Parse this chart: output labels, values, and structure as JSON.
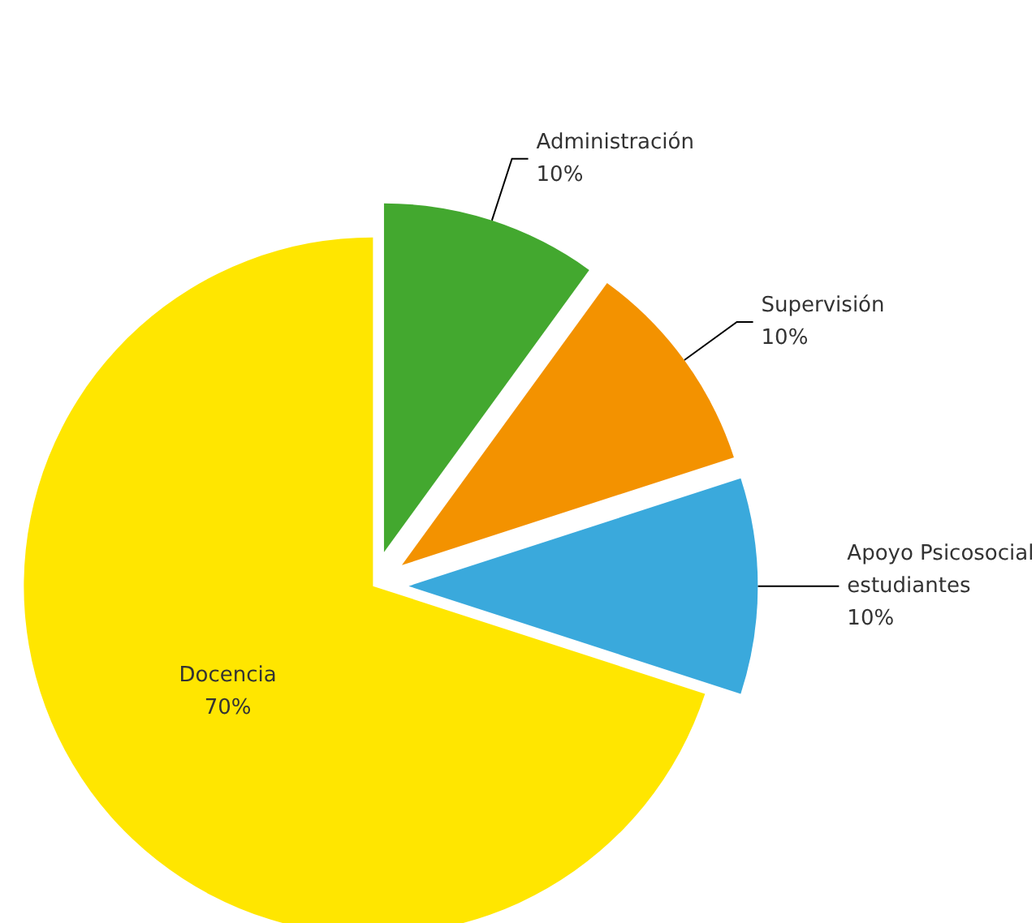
{
  "chart_data": {
    "type": "pie",
    "categories": [
      "Administración",
      "Supervisión",
      "Apoyo Psicosocial estudiantes",
      "Docencia"
    ],
    "values": [
      10,
      10,
      10,
      70
    ],
    "value_labels": [
      "10%",
      "10%",
      "10%",
      "70%"
    ],
    "colors": [
      "#43a82f",
      "#f39200",
      "#3aa9dc",
      "#ffe600"
    ],
    "legend": false
  }
}
